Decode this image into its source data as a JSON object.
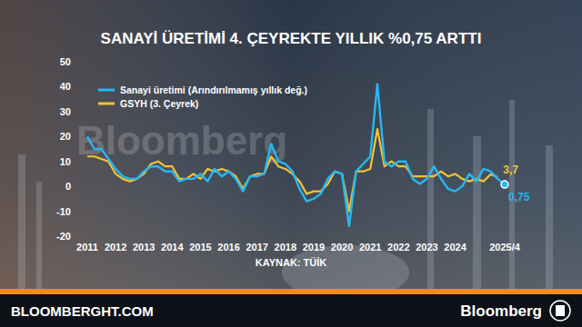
{
  "chart_data": {
    "type": "line",
    "title": "SANAYİ ÜRETİMİ 4. ÇEYREKTE YILLIK %0,75 ARTTI",
    "source": "KAYNAK: TÜİK",
    "watermark": "Bloomberg",
    "footer_left": "BLOOMBERGHT.COM",
    "footer_right": "Bloomberg",
    "categories": [
      "2011",
      null,
      null,
      null,
      "2012",
      null,
      null,
      null,
      "2013",
      null,
      null,
      null,
      "2014",
      null,
      null,
      null,
      "2015",
      null,
      null,
      null,
      "2016",
      null,
      null,
      null,
      "2017",
      null,
      null,
      null,
      "2018",
      null,
      null,
      null,
      "2019",
      null,
      null,
      null,
      "2020",
      null,
      null,
      null,
      "2021",
      null,
      null,
      null,
      "2022",
      null,
      null,
      null,
      "2023",
      null,
      null,
      null,
      "2024",
      null,
      null,
      null,
      null,
      null,
      null,
      "2025/4"
    ],
    "series": [
      {
        "name": "Sanayi üretimi (Arındırılmamış yıllık değ.)",
        "color": "#29b6f0",
        "values": [
          20,
          15,
          15,
          11,
          7,
          4,
          3,
          3,
          6,
          8,
          8,
          6,
          6,
          2,
          3,
          3,
          5,
          2,
          7,
          4,
          6,
          3,
          -2,
          4,
          4,
          5,
          17,
          10,
          9,
          6,
          -1,
          -6,
          -5,
          -3,
          3,
          6,
          5,
          -16,
          6,
          9,
          12,
          41,
          10,
          8,
          10,
          10,
          3,
          1,
          3,
          8,
          3,
          -1,
          -2,
          0,
          5,
          2,
          7,
          6,
          3,
          0.75
        ],
        "value_labels": [
          null,
          null,
          null,
          null,
          null,
          null,
          null,
          null,
          null,
          null,
          null,
          null,
          null,
          null,
          null,
          null,
          null,
          null,
          null,
          null,
          null,
          null,
          null,
          null,
          null,
          null,
          null,
          null,
          null,
          null,
          null,
          null,
          null,
          null,
          null,
          null,
          null,
          null,
          null,
          null,
          null,
          null,
          null,
          null,
          null,
          null,
          null,
          null,
          null,
          null,
          null,
          null,
          null,
          null,
          null,
          null,
          null,
          null,
          null,
          "0,75"
        ]
      },
      {
        "name": "GSYH (3. Çeyrek)",
        "color": "#f5c234",
        "values": [
          12,
          12,
          11,
          10,
          5,
          3,
          2,
          3,
          5,
          9,
          10,
          8,
          8,
          3,
          3,
          5,
          3,
          7,
          6,
          7,
          6,
          4,
          -1,
          4,
          5,
          5,
          12,
          8,
          7,
          5,
          2,
          -3,
          -2,
          -2,
          1,
          6,
          5,
          -10,
          6,
          6,
          7,
          23,
          8,
          10,
          8,
          8,
          4,
          4,
          4,
          4,
          6,
          4,
          5,
          3,
          2,
          3,
          2,
          4.8,
          3.7,
          null
        ],
        "value_labels": [
          null,
          null,
          null,
          null,
          null,
          null,
          null,
          null,
          null,
          null,
          null,
          null,
          null,
          null,
          null,
          null,
          null,
          null,
          null,
          null,
          null,
          null,
          null,
          null,
          null,
          null,
          null,
          null,
          null,
          null,
          null,
          null,
          null,
          null,
          null,
          null,
          null,
          null,
          null,
          null,
          null,
          null,
          null,
          null,
          null,
          null,
          null,
          null,
          null,
          null,
          null,
          null,
          null,
          null,
          null,
          null,
          null,
          null,
          "3,7",
          null
        ]
      }
    ],
    "ylim": [
      -20,
      50
    ],
    "yticks": [
      -20,
      -10,
      0,
      10,
      20,
      30,
      40,
      50
    ],
    "grid": false,
    "legend": "top-left"
  }
}
